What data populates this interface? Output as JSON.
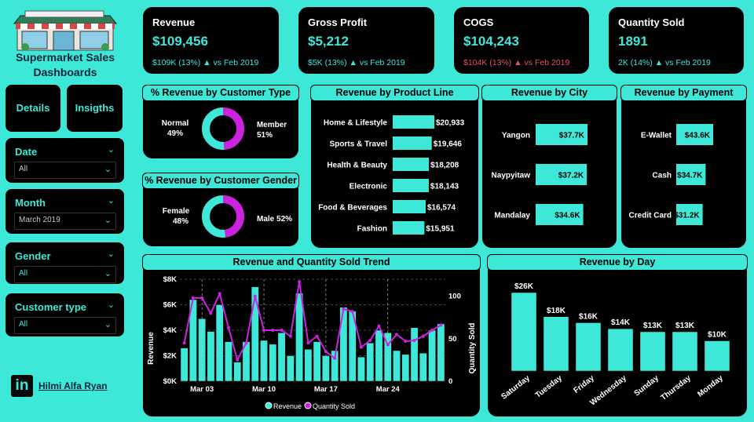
{
  "title": "Supermarket Sales Dashboards",
  "buttons": {
    "details": "Details",
    "insights": "Insigths"
  },
  "slicers": [
    {
      "label": "Date",
      "value": "All"
    },
    {
      "label": "Month",
      "value": "March 2019"
    },
    {
      "label": "Gender",
      "value": "All"
    },
    {
      "label": "Customer type",
      "value": "All"
    }
  ],
  "author": {
    "name": "Hilmi Alfa Ryan",
    "icon": "linkedin-icon",
    "icon_text": "in"
  },
  "kpis": [
    {
      "title": "Revenue",
      "value": "$109,456",
      "sub": "$109K (13%)",
      "arrow": "▲",
      "vs": "vs Feb 2019",
      "negative": false
    },
    {
      "title": "Gross Profit",
      "value": "$5,212",
      "sub": "$5K (13%)",
      "arrow": "▲",
      "vs": "vs Feb 2019",
      "negative": false
    },
    {
      "title": "COGS",
      "value": "$104,243",
      "sub": "$104K (13%)",
      "arrow": "▲",
      "vs": "vs Feb 2019",
      "negative": true
    },
    {
      "title": "Quantity Sold",
      "value": "1891",
      "sub": "2K (14%)",
      "arrow": "▲",
      "vs": "vs Feb 2019",
      "negative": false
    }
  ],
  "colors": {
    "accent": "#3ee8d8",
    "magenta": "#cc22e0",
    "background": "#000000",
    "negative": "#e8505b"
  },
  "chart_data": [
    {
      "type": "pie",
      "title": "% Revenue by Customer Type",
      "slices": [
        {
          "label": "Normal",
          "pct": "49%",
          "value": 49
        },
        {
          "label": "Member",
          "pct": "51%",
          "value": 51
        }
      ]
    },
    {
      "type": "pie",
      "title": "% Revenue by Customer Gender",
      "slices": [
        {
          "label": "Female",
          "pct": "48%",
          "value": 48
        },
        {
          "label": "Male",
          "pct": "52%",
          "value": 52
        }
      ]
    },
    {
      "type": "bar",
      "title": "Revenue by Product Line",
      "categories": [
        "Home & Lifestyle",
        "Sports & Travel",
        "Health & Beauty",
        "Electronic",
        "Food & Beverages",
        "Fashion"
      ],
      "values": [
        20933,
        19646,
        18208,
        18143,
        16574,
        15951
      ],
      "labels": [
        "$20,933",
        "$19,646",
        "$18,208",
        "$18,143",
        "$16,574",
        "$15,951"
      ]
    },
    {
      "type": "bar",
      "title": "Revenue by City",
      "categories": [
        "Yangon",
        "Naypyitaw",
        "Mandalay"
      ],
      "values": [
        37700,
        37200,
        34600
      ],
      "labels": [
        "$37.7K",
        "$37.2K",
        "$34.6K"
      ]
    },
    {
      "type": "bar",
      "title": "Revenue by Payment",
      "categories": [
        "E-Wallet",
        "Cash",
        "Credit Card"
      ],
      "values": [
        43600,
        34700,
        31200
      ],
      "labels": [
        "$43.6K",
        "$34.7K",
        "$31.2K"
      ]
    },
    {
      "type": "bar",
      "title": "Revenue and Quantity Sold Trend",
      "x_ticks": [
        "Mar 03",
        "Mar 10",
        "Mar 17",
        "Mar 24"
      ],
      "ylabel": "Revenue",
      "y2label": "Quantity Sold",
      "y_ticks": [
        "$0K",
        "$2K",
        "$4K",
        "$6K",
        "$8K"
      ],
      "y2_ticks": [
        "0",
        "50",
        "100"
      ],
      "ylim": [
        0,
        8000
      ],
      "y2lim": [
        0,
        120
      ],
      "legend": [
        "Revenue",
        "Quantity Sold"
      ],
      "series": [
        {
          "name": "Revenue",
          "values": [
            2600,
            6400,
            4900,
            3900,
            6000,
            3100,
            1500,
            3100,
            7400,
            3200,
            2900,
            3800,
            2000,
            6900,
            2500,
            3100,
            2000,
            2400,
            5800,
            5500,
            1900,
            3000,
            4000,
            3800,
            2400,
            2100,
            4200,
            2200,
            4000,
            4500
          ]
        },
        {
          "name": "Quantity Sold",
          "values": [
            45,
            98,
            98,
            80,
            103,
            63,
            25,
            45,
            100,
            60,
            60,
            60,
            53,
            117,
            45,
            53,
            35,
            27,
            85,
            82,
            40,
            48,
            65,
            43,
            55,
            47,
            48,
            53,
            60,
            66
          ]
        }
      ]
    },
    {
      "type": "bar",
      "title": "Revenue by Day",
      "categories": [
        "Saturday",
        "Tuesday",
        "Friday",
        "Wednesday",
        "Sunday",
        "Thursday",
        "Monday"
      ],
      "values": [
        26000,
        18000,
        16000,
        14000,
        13000,
        13000,
        10000
      ],
      "labels": [
        "$26K",
        "$18K",
        "$16K",
        "$14K",
        "$13K",
        "$13K",
        "$10K"
      ]
    }
  ]
}
